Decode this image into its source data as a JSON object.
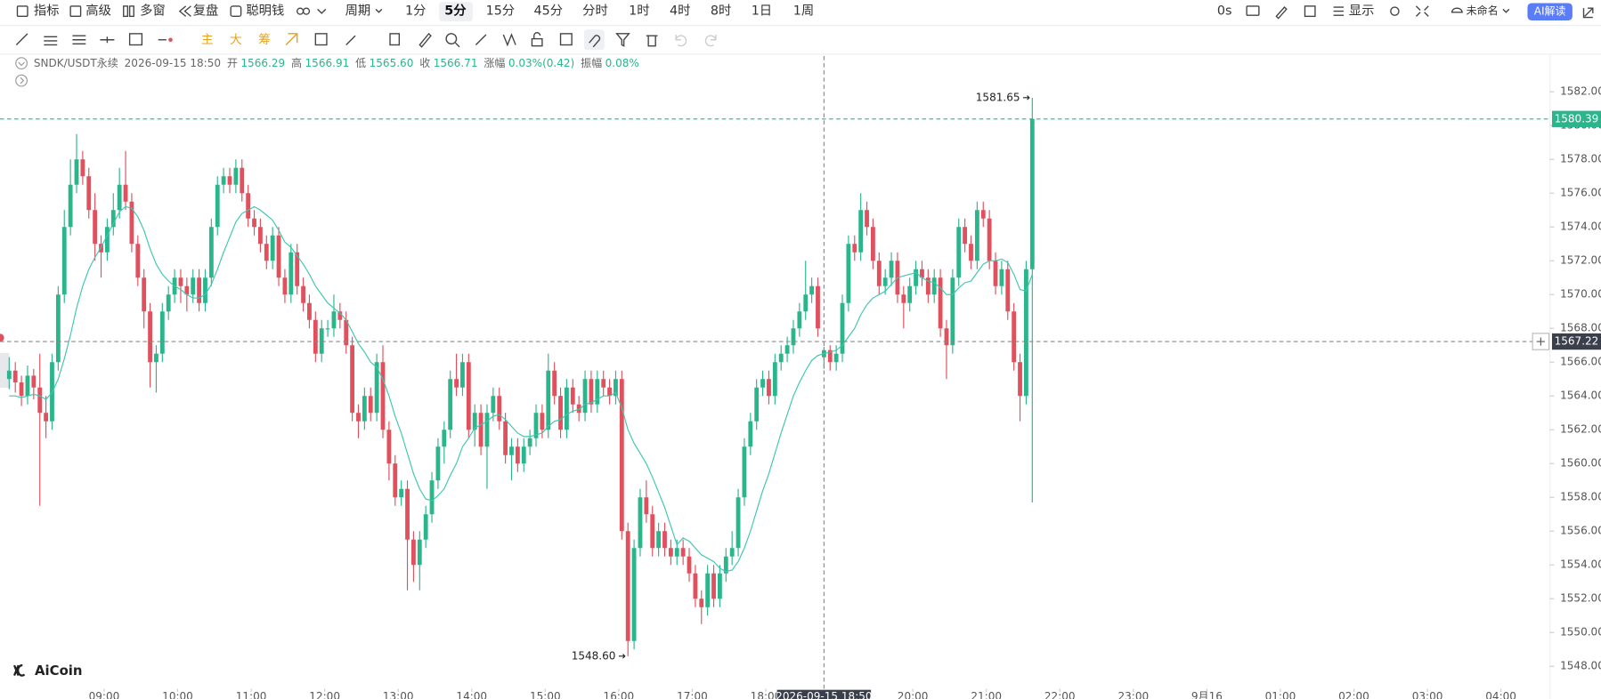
{
  "toolbar": {
    "left": [
      "指标",
      "高级",
      "多窗",
      "复盘",
      "聪明钱"
    ],
    "period_label": "周期",
    "periods": [
      "1分",
      "5分",
      "15分",
      "45分",
      "分时",
      "1时",
      "4时",
      "8时",
      "1日",
      "1周"
    ],
    "selected_period": 1,
    "right": {
      "timer": "0s",
      "display": "显示",
      "layout": "未命名",
      "ai": "AI解读"
    }
  },
  "drawing_toolbar": {
    "labels": [
      "主",
      "大",
      "筹"
    ]
  },
  "legend": {
    "symbol": "SNDK/USDT永续",
    "time": "2026-09-15 18:50",
    "items": [
      {
        "label": "开",
        "value": "1566.29"
      },
      {
        "label": "高",
        "value": "1566.91"
      },
      {
        "label": "低",
        "value": "1565.60"
      },
      {
        "label": "收",
        "value": "1566.71"
      },
      {
        "label": "涨幅",
        "value": "0.03%(0.42)"
      },
      {
        "label": "振幅",
        "value": "0.08%"
      }
    ]
  },
  "watermark": "AiCoin",
  "chart_data": {
    "type": "candlestick",
    "up_color": "#2bb58a",
    "down_color": "#e0505d",
    "ylim": [
      1546.67,
      1584.11
    ],
    "yticks": [
      {
        "value": 1548,
        "label": "1548.00"
      },
      {
        "value": 1550,
        "label": "1550.00"
      },
      {
        "value": 1552,
        "label": "1552.00"
      },
      {
        "value": 1554,
        "label": "1554.00"
      },
      {
        "value": 1556,
        "label": "1556.00"
      },
      {
        "value": 1558,
        "label": "1558.00"
      },
      {
        "value": 1560,
        "label": "1560.00"
      },
      {
        "value": 1562,
        "label": "1562.00"
      },
      {
        "value": 1564,
        "label": "1564.00"
      },
      {
        "value": 1566,
        "label": "1566.00"
      },
      {
        "value": 1568,
        "label": "1568.00"
      },
      {
        "value": 1570,
        "label": "1570.00"
      },
      {
        "value": 1572,
        "label": "1572.00"
      },
      {
        "value": 1574,
        "label": "1574.00"
      },
      {
        "value": 1576,
        "label": "1576.00"
      },
      {
        "value": 1578,
        "label": "1578.00"
      },
      {
        "value": 1580,
        "label": "1580.00"
      },
      {
        "value": 1582,
        "label": "1582.00"
      }
    ],
    "xlim": [
      -1.5,
      251.5
    ],
    "xticks": [
      {
        "value": 15.5,
        "label": "09:00"
      },
      {
        "value": 27.5,
        "label": "10:00"
      },
      {
        "value": 39.5,
        "label": "11:00"
      },
      {
        "value": 51.5,
        "label": "12:00"
      },
      {
        "value": 63.5,
        "label": "13:00"
      },
      {
        "value": 75.5,
        "label": "14:00"
      },
      {
        "value": 87.5,
        "label": "15:00"
      },
      {
        "value": 99.5,
        "label": "16:00"
      },
      {
        "value": 111.5,
        "label": "17:00"
      },
      {
        "value": 123.5,
        "label": "18:00"
      },
      {
        "value": 147.5,
        "label": "20:00"
      },
      {
        "value": 159.5,
        "label": "21:00"
      },
      {
        "value": 171.5,
        "label": "22:00"
      },
      {
        "value": 183.5,
        "label": "23:00"
      },
      {
        "value": 195.5,
        "label": "9月16"
      },
      {
        "value": 207.5,
        "label": "01:00"
      },
      {
        "value": 219.5,
        "label": "02:00"
      },
      {
        "value": 231.5,
        "label": "03:00"
      },
      {
        "value": 243.5,
        "label": "04:00"
      }
    ],
    "candles": [
      [
        1565,
        1566.3,
        1564.4,
        1565.5
      ],
      [
        1565.5,
        1566,
        1564.2,
        1564.8
      ],
      [
        1564.8,
        1565.2,
        1563.4,
        1564
      ],
      [
        1564,
        1565.8,
        1563.5,
        1565.2
      ],
      [
        1565.2,
        1565.6,
        1563.8,
        1564.5
      ],
      [
        1564.5,
        1566.5,
        1557.5,
        1563
      ],
      [
        1563,
        1564,
        1561.5,
        1562.5
      ],
      [
        1562.5,
        1566.5,
        1562,
        1566
      ],
      [
        1566,
        1570.5,
        1565.5,
        1570
      ],
      [
        1570,
        1575,
        1569.5,
        1574
      ],
      [
        1574,
        1578,
        1573.5,
        1576.5
      ],
      [
        1576.5,
        1579.5,
        1576,
        1578
      ],
      [
        1578,
        1578.5,
        1576.5,
        1577
      ],
      [
        1577,
        1577.5,
        1574.5,
        1575
      ],
      [
        1575,
        1576,
        1572,
        1573
      ],
      [
        1573,
        1573.5,
        1571,
        1572.5
      ],
      [
        1572.5,
        1574.5,
        1572,
        1574
      ],
      [
        1574,
        1576,
        1573.5,
        1575
      ],
      [
        1575,
        1577.5,
        1574.5,
        1576.5
      ],
      [
        1576.5,
        1578.5,
        1575,
        1575.5
      ],
      [
        1575.5,
        1576,
        1572.5,
        1573
      ],
      [
        1573,
        1573.5,
        1570.5,
        1571
      ],
      [
        1571,
        1571.5,
        1568,
        1569
      ],
      [
        1569,
        1569.5,
        1564.5,
        1566
      ],
      [
        1566,
        1567,
        1564.2,
        1566.5
      ],
      [
        1566.5,
        1569.5,
        1566,
        1569
      ],
      [
        1569,
        1570.5,
        1568.5,
        1570
      ],
      [
        1570,
        1571.5,
        1569.5,
        1571
      ],
      [
        1571,
        1571.5,
        1569.5,
        1570.5
      ],
      [
        1570.5,
        1571,
        1569,
        1570
      ],
      [
        1570,
        1571.5,
        1569.5,
        1571
      ],
      [
        1571,
        1571.5,
        1569,
        1569.5
      ],
      [
        1569.5,
        1571.5,
        1569,
        1571
      ],
      [
        1571,
        1574.5,
        1570.5,
        1574
      ],
      [
        1574,
        1577,
        1573.5,
        1576.5
      ],
      [
        1576.5,
        1577.5,
        1576,
        1577
      ],
      [
        1577,
        1577.5,
        1576,
        1576.5
      ],
      [
        1576.5,
        1578,
        1576,
        1577.5
      ],
      [
        1577.5,
        1578,
        1575.5,
        1576
      ],
      [
        1576,
        1576.5,
        1574,
        1574.5
      ],
      [
        1574.5,
        1575,
        1573.5,
        1574
      ],
      [
        1574,
        1574.5,
        1572.5,
        1573
      ],
      [
        1573,
        1573.5,
        1571.5,
        1572
      ],
      [
        1572,
        1574,
        1571.5,
        1573.5
      ],
      [
        1573.5,
        1574,
        1570.5,
        1571
      ],
      [
        1571,
        1571.5,
        1569.5,
        1570
      ],
      [
        1570,
        1573,
        1569.5,
        1572.5
      ],
      [
        1572.5,
        1573,
        1570,
        1570.5
      ],
      [
        1570.5,
        1571,
        1569,
        1569.5
      ],
      [
        1569.5,
        1570,
        1568,
        1568.5
      ],
      [
        1568.5,
        1569,
        1566,
        1566.5
      ],
      [
        1566.5,
        1568.5,
        1566,
        1568
      ],
      [
        1568,
        1568.5,
        1567.5,
        1568
      ],
      [
        1568,
        1570,
        1567.5,
        1569
      ],
      [
        1569,
        1569.5,
        1568,
        1568.5
      ],
      [
        1568.5,
        1569,
        1566.5,
        1567
      ],
      [
        1567,
        1567.5,
        1562.5,
        1563
      ],
      [
        1563,
        1563.5,
        1561.5,
        1562.5
      ],
      [
        1562.5,
        1564.5,
        1562,
        1564
      ],
      [
        1564,
        1564.5,
        1562.5,
        1563
      ],
      [
        1563,
        1566.5,
        1562.5,
        1566
      ],
      [
        1566,
        1567,
        1561.5,
        1562
      ],
      [
        1562,
        1562.5,
        1559,
        1560
      ],
      [
        1560,
        1560.5,
        1557.5,
        1558
      ],
      [
        1558,
        1559,
        1557.5,
        1558.5
      ],
      [
        1558.5,
        1559,
        1552.5,
        1555.5
      ],
      [
        1555.5,
        1556,
        1553,
        1554
      ],
      [
        1554,
        1556,
        1552.5,
        1555.5
      ],
      [
        1555.5,
        1557.5,
        1555,
        1557
      ],
      [
        1557,
        1559.5,
        1556.5,
        1559
      ],
      [
        1559,
        1561.5,
        1558.5,
        1561
      ],
      [
        1561,
        1562.5,
        1560,
        1562
      ],
      [
        1562,
        1565.5,
        1561.5,
        1565
      ],
      [
        1565,
        1566.5,
        1564,
        1564.5
      ],
      [
        1564.5,
        1566.5,
        1564,
        1566
      ],
      [
        1566,
        1566.5,
        1561.5,
        1562
      ],
      [
        1562,
        1563.5,
        1561,
        1563
      ],
      [
        1563,
        1563.5,
        1560.5,
        1561
      ],
      [
        1561,
        1563.5,
        1558.5,
        1563
      ],
      [
        1563,
        1564.5,
        1562.5,
        1564
      ],
      [
        1564,
        1564.5,
        1562,
        1562.5
      ],
      [
        1562.5,
        1563,
        1560,
        1560.5
      ],
      [
        1560.5,
        1561.5,
        1559,
        1561
      ],
      [
        1561,
        1561.5,
        1559.5,
        1560
      ],
      [
        1560,
        1561.5,
        1559.5,
        1561
      ],
      [
        1561,
        1562,
        1560.5,
        1561.5
      ],
      [
        1561.5,
        1563.5,
        1561,
        1563
      ],
      [
        1563,
        1563.5,
        1561.5,
        1562
      ],
      [
        1562,
        1566.5,
        1561.5,
        1565.5
      ],
      [
        1565.5,
        1566,
        1563.5,
        1564
      ],
      [
        1564,
        1564.5,
        1561.5,
        1562
      ],
      [
        1562,
        1565,
        1561.5,
        1564.5
      ],
      [
        1564.5,
        1565,
        1563,
        1563.5
      ],
      [
        1563.5,
        1564,
        1562.5,
        1563
      ],
      [
        1563,
        1565.5,
        1562.5,
        1565
      ],
      [
        1565,
        1565.5,
        1563,
        1563.5
      ],
      [
        1563.5,
        1565.5,
        1563,
        1565
      ],
      [
        1565,
        1565.5,
        1564,
        1564.5
      ],
      [
        1564.5,
        1565,
        1563.5,
        1564
      ],
      [
        1564,
        1565.5,
        1563.5,
        1565
      ],
      [
        1565,
        1565.5,
        1555.5,
        1556
      ],
      [
        1556,
        1556.5,
        1548.6,
        1549.5
      ],
      [
        1549.5,
        1555.5,
        1549,
        1555
      ],
      [
        1555,
        1558.5,
        1554.5,
        1558
      ],
      [
        1558,
        1559,
        1556.5,
        1557
      ],
      [
        1557,
        1557.5,
        1554.5,
        1555
      ],
      [
        1555,
        1556.5,
        1554.5,
        1556
      ],
      [
        1556,
        1556.5,
        1554.5,
        1555
      ],
      [
        1555,
        1555.5,
        1554,
        1554.5
      ],
      [
        1554.5,
        1555.5,
        1554,
        1555
      ],
      [
        1555,
        1555.5,
        1554,
        1554.5
      ],
      [
        1554.5,
        1555,
        1553,
        1553.5
      ],
      [
        1553.5,
        1554,
        1551.5,
        1552
      ],
      [
        1552,
        1552.5,
        1550.5,
        1551.5
      ],
      [
        1551.5,
        1554,
        1551,
        1553.5
      ],
      [
        1553.5,
        1554,
        1551.5,
        1552
      ],
      [
        1552,
        1554,
        1551.5,
        1553.5
      ],
      [
        1553.5,
        1555,
        1553,
        1554.5
      ],
      [
        1554.5,
        1556,
        1554,
        1555
      ],
      [
        1555,
        1558.5,
        1554.5,
        1558
      ],
      [
        1558,
        1561.5,
        1557.5,
        1561
      ],
      [
        1561,
        1563,
        1560.5,
        1562.5
      ],
      [
        1562.5,
        1565,
        1562,
        1564.5
      ],
      [
        1564.5,
        1565.5,
        1564,
        1565
      ],
      [
        1565,
        1565.5,
        1563.5,
        1564
      ],
      [
        1564,
        1566.5,
        1563.5,
        1566
      ],
      [
        1566,
        1567,
        1565.5,
        1566.5
      ],
      [
        1566.5,
        1567.5,
        1566,
        1567
      ],
      [
        1567,
        1568.5,
        1566.5,
        1568
      ],
      [
        1568,
        1569.5,
        1567.5,
        1569
      ],
      [
        1569,
        1572,
        1568.5,
        1570
      ],
      [
        1570,
        1571,
        1569.5,
        1570.5
      ],
      [
        1570.5,
        1571,
        1567.5,
        1568
      ],
      [
        1566.29,
        1566.91,
        1565.6,
        1566.71
      ],
      [
        1566.71,
        1567,
        1565.5,
        1566
      ],
      [
        1566,
        1567,
        1565.5,
        1566.5
      ],
      [
        1566.5,
        1570,
        1566,
        1569.5
      ],
      [
        1569.5,
        1573.5,
        1569,
        1573
      ],
      [
        1573,
        1573.5,
        1572,
        1572.5
      ],
      [
        1572.5,
        1576,
        1572,
        1575
      ],
      [
        1575,
        1575.5,
        1573.5,
        1574
      ],
      [
        1574,
        1574.5,
        1571.5,
        1572
      ],
      [
        1572,
        1572.5,
        1570,
        1570.5
      ],
      [
        1570.5,
        1571.5,
        1570,
        1571
      ],
      [
        1571,
        1572.5,
        1570.5,
        1572
      ],
      [
        1572,
        1572.5,
        1569.5,
        1570
      ],
      [
        1570,
        1570.5,
        1568,
        1569.5
      ],
      [
        1569.5,
        1571,
        1569,
        1570.5
      ],
      [
        1570.5,
        1572,
        1570,
        1571.5
      ],
      [
        1571.5,
        1572,
        1570.5,
        1571
      ],
      [
        1571,
        1571.5,
        1569.5,
        1570
      ],
      [
        1570,
        1571.5,
        1569.5,
        1571
      ],
      [
        1571,
        1571.5,
        1567.5,
        1568
      ],
      [
        1568,
        1568.5,
        1565,
        1567
      ],
      [
        1567,
        1571.5,
        1566.5,
        1571
      ],
      [
        1571,
        1574.5,
        1570.5,
        1574
      ],
      [
        1574,
        1574.5,
        1572.5,
        1573
      ],
      [
        1573,
        1573.5,
        1571.5,
        1572
      ],
      [
        1572,
        1575.5,
        1571.5,
        1575
      ],
      [
        1575,
        1575.5,
        1574,
        1574.5
      ],
      [
        1574.5,
        1575,
        1571.5,
        1572
      ],
      [
        1572,
        1572.5,
        1570,
        1570.5
      ],
      [
        1570.5,
        1572,
        1570,
        1571.5
      ],
      [
        1571.5,
        1572,
        1568.5,
        1569
      ],
      [
        1569,
        1569.5,
        1565.5,
        1566
      ],
      [
        1566,
        1566.5,
        1562.5,
        1564
      ],
      [
        1564,
        1572,
        1563.5,
        1571.5
      ],
      [
        1571.5,
        1581.65,
        1557.7,
        1580.39
      ]
    ],
    "ma": {
      "color": "#3cc7b0",
      "values": [
        1564.0,
        1564.0,
        1563.9,
        1564.0,
        1564.1,
        1564.0,
        1563.8,
        1564.2,
        1565.0,
        1566.2,
        1567.6,
        1569.2,
        1570.5,
        1571.5,
        1572.2,
        1572.8,
        1573.5,
        1574.2,
        1574.9,
        1575.2,
        1575.1,
        1574.6,
        1573.8,
        1572.7,
        1571.8,
        1571.2,
        1570.8,
        1570.5,
        1570.3,
        1570.0,
        1569.8,
        1569.8,
        1570.0,
        1570.6,
        1571.5,
        1572.5,
        1573.4,
        1574.3,
        1574.8,
        1575.0,
        1575.2,
        1575.0,
        1574.7,
        1574.4,
        1573.8,
        1573.1,
        1572.8,
        1572.3,
        1571.8,
        1571.2,
        1570.5,
        1570.0,
        1569.5,
        1569.2,
        1568.9,
        1568.5,
        1567.8,
        1567.1,
        1566.6,
        1566.0,
        1565.7,
        1565.0,
        1564.0,
        1562.8,
        1561.8,
        1560.6,
        1559.4,
        1558.5,
        1557.9,
        1557.8,
        1558.1,
        1558.5,
        1559.3,
        1560.0,
        1561.0,
        1561.5,
        1562.1,
        1562.3,
        1562.5,
        1562.8,
        1562.9,
        1562.6,
        1562.2,
        1561.8,
        1561.6,
        1561.6,
        1561.7,
        1561.8,
        1562.2,
        1562.5,
        1562.6,
        1562.9,
        1563.1,
        1563.2,
        1563.5,
        1563.6,
        1563.8,
        1564.0,
        1564.0,
        1564.2,
        1563.3,
        1562.0,
        1561.2,
        1560.6,
        1560.0,
        1559.2,
        1558.3,
        1557.4,
        1556.3,
        1555.2,
        1555.6,
        1555.4,
        1555.0,
        1554.6,
        1554.4,
        1554.2,
        1553.8,
        1553.6,
        1553.7,
        1554.2,
        1555.0,
        1556.0,
        1557.2,
        1558.4,
        1559.4,
        1560.6,
        1561.8,
        1562.9,
        1564.0,
        1564.8,
        1565.5,
        1566.1,
        1566.4,
        1566.5,
        1566.6,
        1566.7,
        1567.0,
        1567.5,
        1568.0,
        1568.8,
        1569.4,
        1569.8,
        1570.0,
        1570.2,
        1570.6,
        1571.0,
        1571.1,
        1571.2,
        1571.3,
        1571.0,
        1570.8,
        1570.7,
        1570.4,
        1570.0,
        1570.0,
        1570.4,
        1570.7,
        1570.8,
        1571.3,
        1571.8,
        1572.0,
        1572.0,
        1572.1,
        1571.9,
        1571.2,
        1570.3,
        1570.2,
        1571.2
      ]
    },
    "last_price": 1580.39,
    "crosshair_price": 1567.22,
    "crosshair_time": "2026-09-15 18:50",
    "crosshair_candle": 133,
    "max_label": "1581.65",
    "min_label": "1548.60"
  }
}
